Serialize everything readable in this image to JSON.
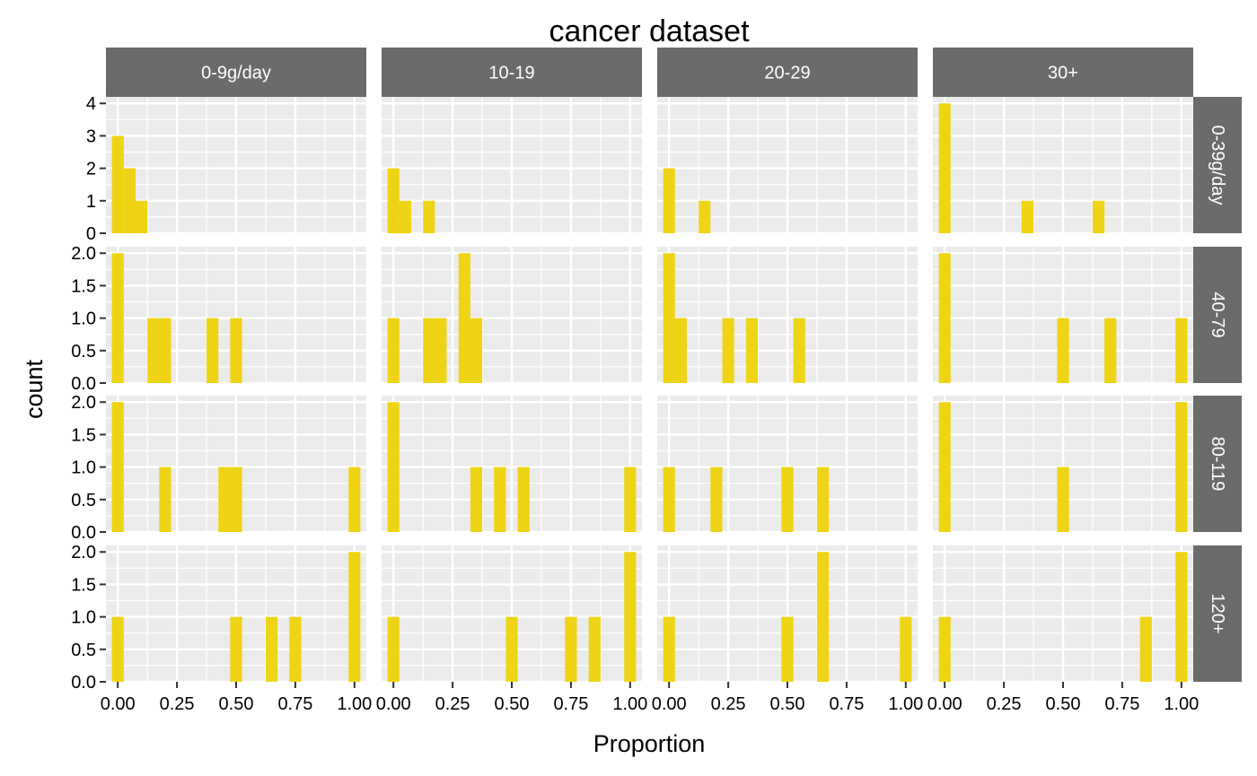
{
  "chart_data": {
    "type": "bar",
    "title": "cancer dataset",
    "xlabel": "Proportion",
    "ylabel": "count",
    "bar_color": "#EED414",
    "panel_bg": "#EBEBEB",
    "grid_color": "#FFFFFF",
    "strip_bg": "#6B6B6B",
    "strip_text_color": "#FFFFFF",
    "bin_width": 0.05,
    "xlim": [
      -0.05,
      1.05
    ],
    "x_ticks": [
      "0.00",
      "0.25",
      "0.50",
      "0.75",
      "1.00"
    ],
    "columns": [
      "0-9g/day",
      "10-19",
      "20-29",
      "30+"
    ],
    "rows": [
      {
        "label": "0-39g/day",
        "ylim": [
          0,
          4.2
        ],
        "y_ticks": [
          "0",
          "1",
          "2",
          "3",
          "4"
        ]
      },
      {
        "label": "40-79",
        "ylim": [
          0,
          2.1
        ],
        "y_ticks": [
          "0.0",
          "0.5",
          "1.0",
          "1.5",
          "2.0"
        ]
      },
      {
        "label": "80-119",
        "ylim": [
          0,
          2.1
        ],
        "y_ticks": [
          "0.0",
          "0.5",
          "1.0",
          "1.5",
          "2.0"
        ]
      },
      {
        "label": "120+",
        "ylim": [
          0,
          2.1
        ],
        "y_ticks": [
          "0.0",
          "0.5",
          "1.0",
          "1.5",
          "2.0"
        ]
      }
    ],
    "panels": [
      [
        {
          "bins": [
            [
              0.0,
              3
            ],
            [
              0.05,
              2
            ],
            [
              0.1,
              1
            ]
          ]
        },
        {
          "bins": [
            [
              0.0,
              2
            ],
            [
              0.05,
              1
            ],
            [
              0.15,
              1
            ]
          ]
        },
        {
          "bins": [
            [
              0.0,
              2
            ],
            [
              0.15,
              1
            ]
          ]
        },
        {
          "bins": [
            [
              0.0,
              4
            ],
            [
              0.35,
              1
            ],
            [
              0.65,
              1
            ]
          ]
        }
      ],
      [
        {
          "bins": [
            [
              0.0,
              2
            ],
            [
              0.15,
              1
            ],
            [
              0.2,
              1
            ],
            [
              0.4,
              1
            ],
            [
              0.5,
              1
            ]
          ]
        },
        {
          "bins": [
            [
              0.0,
              1
            ],
            [
              0.15,
              1
            ],
            [
              0.2,
              1
            ],
            [
              0.3,
              2
            ],
            [
              0.35,
              1
            ]
          ]
        },
        {
          "bins": [
            [
              0.0,
              2
            ],
            [
              0.05,
              1
            ],
            [
              0.25,
              1
            ],
            [
              0.35,
              1
            ],
            [
              0.55,
              1
            ]
          ]
        },
        {
          "bins": [
            [
              0.0,
              2
            ],
            [
              0.5,
              1
            ],
            [
              0.7,
              1
            ],
            [
              1.0,
              1
            ]
          ]
        }
      ],
      [
        {
          "bins": [
            [
              0.0,
              2
            ],
            [
              0.2,
              1
            ],
            [
              0.45,
              1
            ],
            [
              0.5,
              1
            ],
            [
              1.0,
              1
            ]
          ]
        },
        {
          "bins": [
            [
              0.0,
              2
            ],
            [
              0.35,
              1
            ],
            [
              0.45,
              1
            ],
            [
              0.55,
              1
            ],
            [
              1.0,
              1
            ]
          ]
        },
        {
          "bins": [
            [
              0.0,
              1
            ],
            [
              0.2,
              1
            ],
            [
              0.5,
              1
            ],
            [
              0.65,
              1
            ]
          ]
        },
        {
          "bins": [
            [
              0.0,
              2
            ],
            [
              0.5,
              1
            ],
            [
              1.0,
              2
            ]
          ]
        }
      ],
      [
        {
          "bins": [
            [
              0.0,
              1
            ],
            [
              0.5,
              1
            ],
            [
              0.65,
              1
            ],
            [
              0.75,
              1
            ],
            [
              1.0,
              2
            ]
          ]
        },
        {
          "bins": [
            [
              0.0,
              1
            ],
            [
              0.5,
              1
            ],
            [
              0.75,
              1
            ],
            [
              0.85,
              1
            ],
            [
              1.0,
              2
            ]
          ]
        },
        {
          "bins": [
            [
              0.0,
              1
            ],
            [
              0.5,
              1
            ],
            [
              0.65,
              2
            ],
            [
              1.0,
              1
            ]
          ]
        },
        {
          "bins": [
            [
              0.0,
              1
            ],
            [
              0.85,
              1
            ],
            [
              1.0,
              2
            ]
          ]
        }
      ]
    ]
  }
}
